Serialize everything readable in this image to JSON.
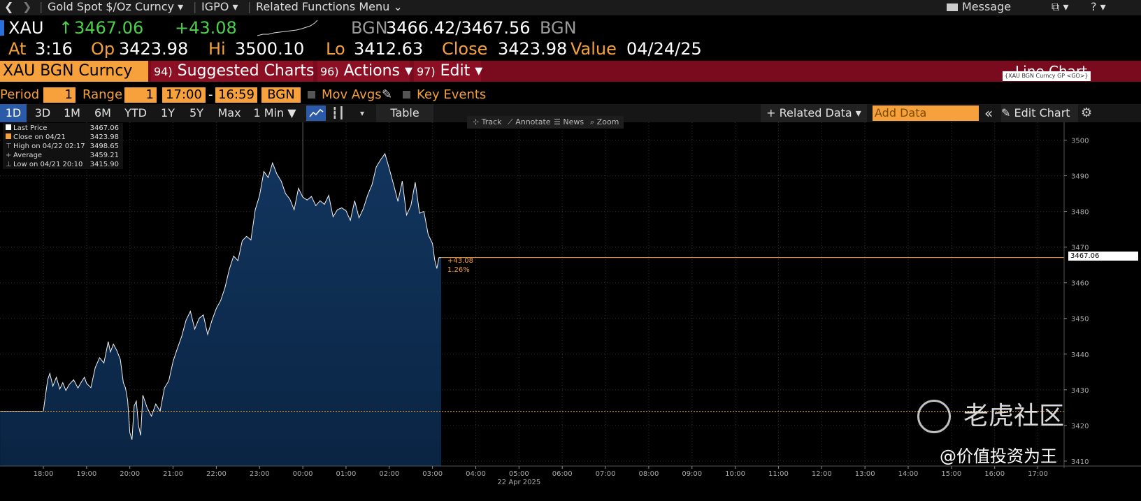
{
  "nav": {
    "back_glyph": "❮",
    "forward_glyph": "❯",
    "security_label": "Gold Spot $/Oz Curncy",
    "monitor_label": "IGPO",
    "related_label": "Related Functions Menu",
    "message_label": "Message",
    "help_label": "?"
  },
  "quote": {
    "ticker": "XAU",
    "arrow": "↑",
    "last": "3467.06",
    "change": "+43.08",
    "source": "BGN",
    "bid_ask": "3466.42/3467.56",
    "source2": "BGN",
    "at_label": "At",
    "time": "3:16",
    "op_label": "Op",
    "open": "3423.98",
    "hi_label": "Hi",
    "high": "3500.10",
    "lo_label": "Lo",
    "low": "3412.63",
    "close_label": "Close",
    "close": "3423.98",
    "value_label": "Value",
    "value_date": "04/24/25"
  },
  "toolbar": {
    "security": "XAU BGN Curncy",
    "suggested_num": "94)",
    "suggested_label": "Suggested Charts",
    "actions_num": "96)",
    "actions_label": "Actions",
    "edit_num": "97)",
    "edit_label": "Edit",
    "chart_type": "Line Chart",
    "chart_tag": "{XAU BGN Curncy GP <GO>}"
  },
  "period": {
    "period_label": "Period",
    "period_value": "1",
    "range_label": "Range",
    "range_value": "1",
    "start_time": "17:00",
    "dash": "-",
    "end_time": "16:59",
    "source": "BGN",
    "mov_avgs": "Mov Avgs",
    "key_events": "Key Events"
  },
  "ranges": {
    "buttons": [
      "1D",
      "3D",
      "1M",
      "6M",
      "YTD",
      "1Y",
      "5Y",
      "Max"
    ],
    "interval": "1 Min ▼",
    "table_label": "Table",
    "related_data": "+ Related Data ▾",
    "add_data_placeholder": "Add Data",
    "collapse": "«",
    "edit_chart": "Edit Chart"
  },
  "chart_tools": [
    "Track",
    "Annotate",
    "News",
    "Zoom"
  ],
  "legend": [
    {
      "label": "Last Price",
      "value": "3467.06",
      "color": "#ffffff"
    },
    {
      "label": "Close on 04/21",
      "value": "3423.98",
      "color": "#f6a13c"
    },
    {
      "label": "High on 04/22 02:17",
      "value": "3498.65",
      "color": "#bbbbbb"
    },
    {
      "label": "Average",
      "value": "3459.21",
      "color": "#bbbbbb"
    },
    {
      "label": "Low on 04/21 20:10",
      "value": "3415.90",
      "color": "#bbbbbb"
    }
  ],
  "annotation": {
    "change": "+43.08",
    "pct": "1.26%",
    "last_tag": "3467.06"
  },
  "watermark": {
    "brand": "老虎社区",
    "author": "@价值投资为王"
  },
  "chart_data": {
    "type": "area",
    "x_unit": "hours since 18:00 (22 Apr 2025 session)",
    "x_tick_labels": [
      "18:00",
      "19:00",
      "20:00",
      "21:00",
      "22:00",
      "23:00",
      "00:00",
      "01:00",
      "02:00",
      "03:00",
      "04:00",
      "05:00",
      "06:00",
      "07:00",
      "08:00",
      "09:00",
      "10:00",
      "11:00",
      "12:00",
      "13:00",
      "14:00",
      "15:00",
      "16:00",
      "17:00"
    ],
    "x_date_label": "22 Apr 2025",
    "y_ticks": [
      3410,
      3420,
      3430,
      3440,
      3450,
      3460,
      3470,
      3480,
      3490,
      3500
    ],
    "ylim": [
      3409,
      3505
    ],
    "previous_close": 3423.98,
    "last_price": 3467.06,
    "series": [
      {
        "name": "Last Price",
        "x": [
          -1.0,
          0,
          0.05,
          0.1,
          0.15,
          0.22,
          0.3,
          0.38,
          0.45,
          0.52,
          0.6,
          0.7,
          0.8,
          0.88,
          0.95,
          1.0,
          1.1,
          1.2,
          1.3,
          1.4,
          1.5,
          1.55,
          1.62,
          1.7,
          1.78,
          1.85,
          1.9,
          1.95,
          2.0,
          2.05,
          2.1,
          2.15,
          2.2,
          2.25,
          2.3,
          2.4,
          2.5,
          2.6,
          2.7,
          2.8,
          2.9,
          3.0,
          3.1,
          3.2,
          3.3,
          3.4,
          3.5,
          3.6,
          3.7,
          3.8,
          3.9,
          4.0,
          4.1,
          4.2,
          4.3,
          4.4,
          4.5,
          4.6,
          4.7,
          4.8,
          4.9,
          5.0,
          5.1,
          5.2,
          5.3,
          5.4,
          5.5,
          5.6,
          5.7,
          5.8,
          5.9,
          6.0,
          6.1,
          6.2,
          6.3,
          6.4,
          6.5,
          6.6,
          6.7,
          6.8,
          6.9,
          7.0,
          7.1,
          7.2,
          7.3,
          7.4,
          7.5,
          7.6,
          7.7,
          7.8,
          7.9,
          8.0,
          8.1,
          8.2,
          8.3,
          8.4,
          8.5,
          8.6,
          8.7,
          8.8,
          8.9,
          9.0,
          9.05,
          9.1,
          9.15,
          9.2
        ],
        "values": [
          3423.98,
          3423.98,
          3428.5,
          3432.8,
          3434.6,
          3431.0,
          3433.5,
          3430.2,
          3432.0,
          3429.8,
          3431.5,
          3432.8,
          3430.5,
          3432.2,
          3433.5,
          3431.8,
          3430.6,
          3436.2,
          3439.0,
          3437.5,
          3443.5,
          3440.6,
          3442.8,
          3441.0,
          3438.5,
          3432.0,
          3430.5,
          3427.0,
          3418.0,
          3416.0,
          3425.5,
          3426.8,
          3420.0,
          3417.2,
          3428.5,
          3425.0,
          3422.6,
          3426.0,
          3424.0,
          3430.5,
          3432.5,
          3438.0,
          3441.6,
          3445.0,
          3449.5,
          3452.0,
          3447.0,
          3450.0,
          3451.0,
          3445.5,
          3449.5,
          3452.8,
          3455.0,
          3458.6,
          3463.8,
          3467.5,
          3466.2,
          3471.8,
          3473.0,
          3472.0,
          3480.5,
          3484.5,
          3491.2,
          3489.5,
          3493.6,
          3490.5,
          3488.5,
          3485.0,
          3483.5,
          3480.5,
          3486.5,
          3484.0,
          3483.2,
          3484.2,
          3481.6,
          3483.0,
          3482.0,
          3484.5,
          3478.5,
          3480.5,
          3481.0,
          3480.2,
          3477.5,
          3483.0,
          3478.2,
          3480.8,
          3484.6,
          3487.5,
          3492.5,
          3494.5,
          3496.2,
          3492.0,
          3487.5,
          3482.8,
          3488.5,
          3479.0,
          3481.6,
          3488.2,
          3479.5,
          3480.0,
          3473.5,
          3471.0,
          3466.5,
          3464.0,
          3467.06,
          3467.06
        ]
      }
    ]
  }
}
